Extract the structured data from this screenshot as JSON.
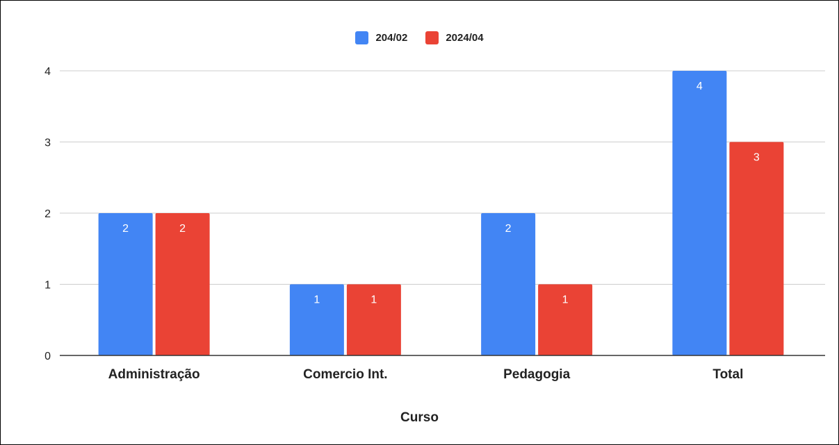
{
  "chart_data": {
    "type": "bar",
    "categories": [
      "Administração",
      "Comercio Int.",
      "Pedagogia",
      "Total"
    ],
    "series": [
      {
        "name": "204/02",
        "values": [
          2,
          1,
          2,
          4
        ],
        "color": "#4285f4"
      },
      {
        "name": "2024/04",
        "values": [
          2,
          1,
          1,
          3
        ],
        "color": "#ea4335"
      }
    ],
    "xlabel": "Curso",
    "ylabel": "",
    "ylim": [
      0,
      4
    ],
    "yticks": [
      0,
      1,
      2,
      3,
      4
    ],
    "grid": true,
    "legend_position": "top",
    "data_labels": true
  }
}
